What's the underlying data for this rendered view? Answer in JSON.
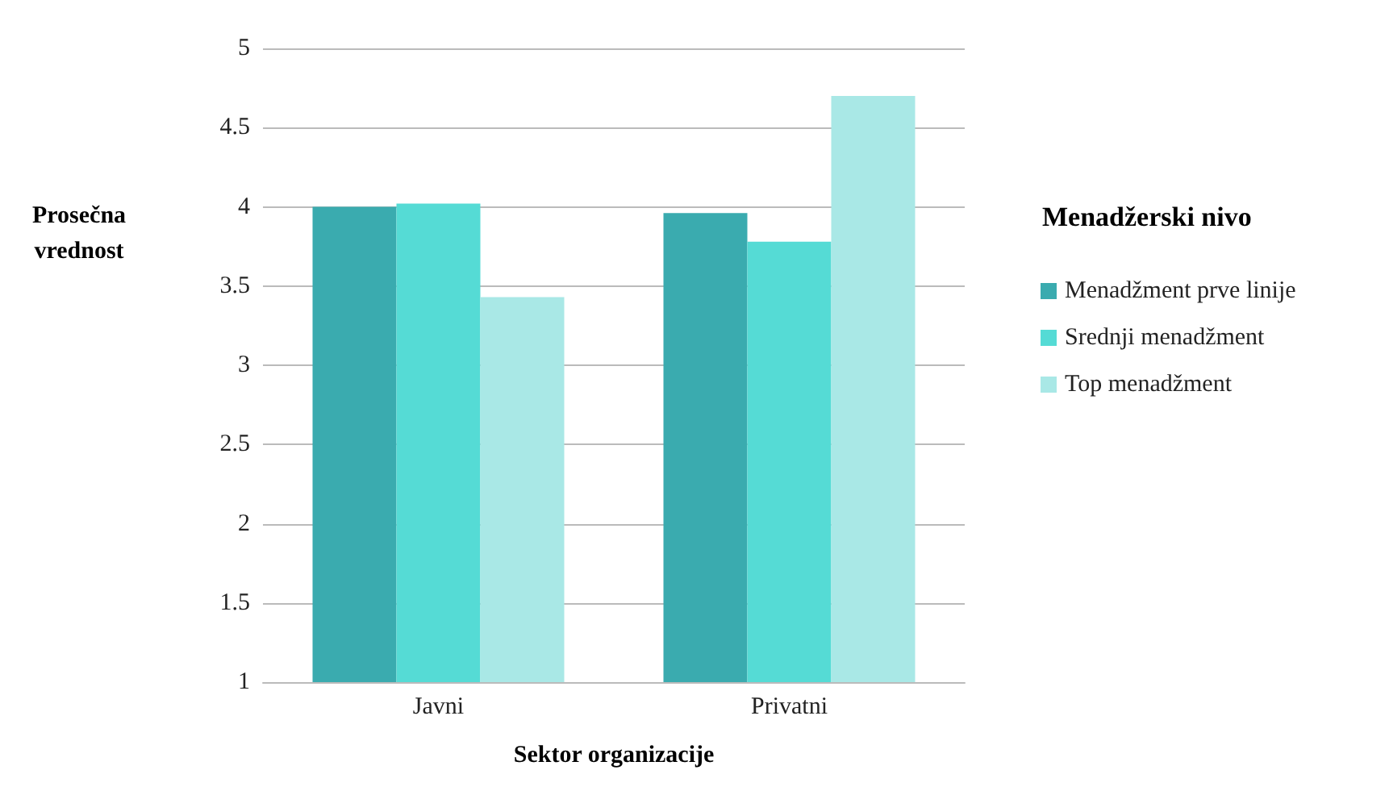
{
  "chart_data": {
    "type": "bar",
    "xlabel": "Sektor organizacije",
    "ylabel": "Prosečna\nvrednost",
    "legend_title": "Menadžerski nivo",
    "categories": [
      "Javni",
      "Privatni"
    ],
    "series": [
      {
        "name": "Menadžment prve linije",
        "color": "#3aabaf",
        "values": [
          4.0,
          3.96
        ]
      },
      {
        "name": "Srednji menadžment",
        "color": "#55dbd5",
        "values": [
          4.02,
          3.78
        ]
      },
      {
        "name": "Top menadžment",
        "color": "#a9e8e6",
        "values": [
          3.43,
          4.7
        ]
      }
    ],
    "ylim": [
      1,
      5
    ],
    "yticks": [
      1,
      1.5,
      2,
      2.5,
      3,
      3.5,
      4,
      4.5,
      5
    ],
    "grid": "y",
    "legend": "right"
  }
}
